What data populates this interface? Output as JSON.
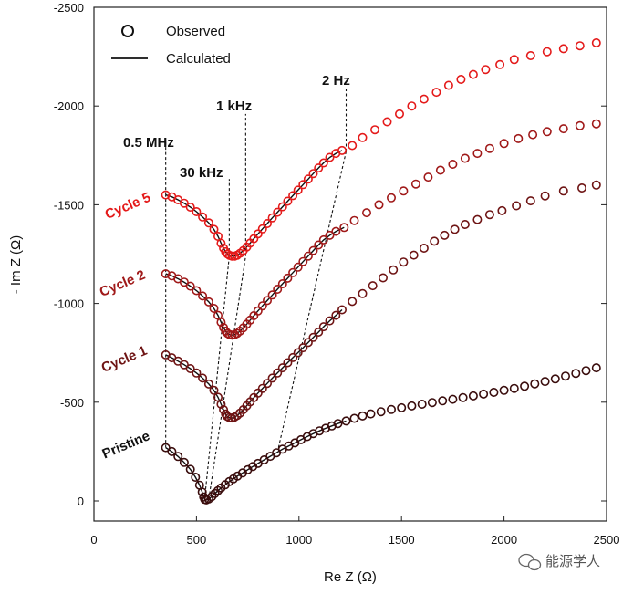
{
  "chart_data": {
    "type": "scatter",
    "xlabel": "Re Z (Ω)",
    "ylabel": "- Im Z (Ω)",
    "xlim": [
      0,
      2500
    ],
    "ylim": [
      0,
      -2500
    ],
    "x_ticks": [
      "0",
      "500",
      "1000",
      "1500",
      "2000",
      "2500"
    ],
    "y_ticks": [
      "0",
      "-500",
      "-1000",
      "-1500",
      "-2000",
      "-2500"
    ],
    "legend": {
      "placement": "top-left",
      "observed_label": "Observed",
      "calculated_label": "Calculated"
    },
    "frequency_annotations": [
      {
        "label": "0.5 MHz",
        "x": 350
      },
      {
        "label": "30 kHz",
        "x": 660
      },
      {
        "label": "1 kHz",
        "x": 740
      },
      {
        "label": "2 Hz",
        "x": 1230
      }
    ],
    "series": [
      {
        "name": "Pristine",
        "color": "#3a0d0d",
        "points": [
          [
            350,
            -270
          ],
          [
            380,
            -250
          ],
          [
            410,
            -225
          ],
          [
            440,
            -195
          ],
          [
            470,
            -160
          ],
          [
            495,
            -120
          ],
          [
            515,
            -80
          ],
          [
            528,
            -45
          ],
          [
            535,
            -20
          ],
          [
            540,
            -8
          ],
          [
            548,
            -5
          ],
          [
            560,
            -10
          ],
          [
            575,
            -22
          ],
          [
            590,
            -38
          ],
          [
            605,
            -52
          ],
          [
            620,
            -66
          ],
          [
            640,
            -82
          ],
          [
            660,
            -98
          ],
          [
            680,
            -112
          ],
          [
            700,
            -126
          ],
          [
            725,
            -142
          ],
          [
            750,
            -158
          ],
          [
            775,
            -174
          ],
          [
            800,
            -190
          ],
          [
            830,
            -208
          ],
          [
            860,
            -226
          ],
          [
            890,
            -244
          ],
          [
            920,
            -262
          ],
          [
            950,
            -278
          ],
          [
            980,
            -294
          ],
          [
            1010,
            -310
          ],
          [
            1040,
            -326
          ],
          [
            1070,
            -341
          ],
          [
            1100,
            -355
          ],
          [
            1130,
            -368
          ],
          [
            1160,
            -380
          ],
          [
            1190,
            -392
          ],
          [
            1230,
            -405
          ],
          [
            1270,
            -418
          ],
          [
            1310,
            -430
          ],
          [
            1350,
            -441
          ],
          [
            1400,
            -452
          ],
          [
            1450,
            -463
          ],
          [
            1500,
            -472
          ],
          [
            1550,
            -481
          ],
          [
            1600,
            -490
          ],
          [
            1650,
            -498
          ],
          [
            1700,
            -507
          ],
          [
            1750,
            -515
          ],
          [
            1800,
            -523
          ],
          [
            1850,
            -532
          ],
          [
            1900,
            -541
          ],
          [
            1950,
            -550
          ],
          [
            2000,
            -560
          ],
          [
            2050,
            -570
          ],
          [
            2100,
            -581
          ],
          [
            2150,
            -593
          ],
          [
            2200,
            -605
          ],
          [
            2250,
            -618
          ],
          [
            2300,
            -632
          ],
          [
            2350,
            -646
          ],
          [
            2400,
            -660
          ],
          [
            2450,
            -674
          ]
        ],
        "fit_x_max": 1230
      },
      {
        "name": "Cycle 1",
        "color": "#6e1414",
        "label": "Cycle 1",
        "points": [
          [
            350,
            -740
          ],
          [
            380,
            -725
          ],
          [
            410,
            -708
          ],
          [
            440,
            -690
          ],
          [
            470,
            -670
          ],
          [
            500,
            -648
          ],
          [
            530,
            -622
          ],
          [
            560,
            -592
          ],
          [
            585,
            -560
          ],
          [
            605,
            -525
          ],
          [
            620,
            -490
          ],
          [
            632,
            -462
          ],
          [
            642,
            -440
          ],
          [
            650,
            -428
          ],
          [
            660,
            -422
          ],
          [
            672,
            -420
          ],
          [
            685,
            -424
          ],
          [
            698,
            -432
          ],
          [
            712,
            -445
          ],
          [
            728,
            -462
          ],
          [
            745,
            -482
          ],
          [
            762,
            -502
          ],
          [
            780,
            -523
          ],
          [
            800,
            -546
          ],
          [
            822,
            -570
          ],
          [
            845,
            -595
          ],
          [
            870,
            -622
          ],
          [
            895,
            -648
          ],
          [
            920,
            -674
          ],
          [
            945,
            -700
          ],
          [
            970,
            -726
          ],
          [
            995,
            -751
          ],
          [
            1020,
            -776
          ],
          [
            1045,
            -802
          ],
          [
            1070,
            -828
          ],
          [
            1095,
            -855
          ],
          [
            1120,
            -882
          ],
          [
            1150,
            -912
          ],
          [
            1180,
            -940
          ],
          [
            1210,
            -968
          ],
          [
            1260,
            -1010
          ],
          [
            1310,
            -1050
          ],
          [
            1360,
            -1090
          ],
          [
            1410,
            -1130
          ],
          [
            1460,
            -1170
          ],
          [
            1510,
            -1210
          ],
          [
            1560,
            -1245
          ],
          [
            1610,
            -1280
          ],
          [
            1660,
            -1315
          ],
          [
            1710,
            -1345
          ],
          [
            1760,
            -1375
          ],
          [
            1810,
            -1400
          ],
          [
            1870,
            -1425
          ],
          [
            1930,
            -1450
          ],
          [
            1990,
            -1470
          ],
          [
            2060,
            -1495
          ],
          [
            2130,
            -1520
          ],
          [
            2200,
            -1545
          ],
          [
            2290,
            -1570
          ],
          [
            2380,
            -1585
          ],
          [
            2450,
            -1600
          ]
        ],
        "fit_x_max": 1230
      },
      {
        "name": "Cycle 2",
        "color": "#a01919",
        "label": "Cycle 2",
        "points": [
          [
            350,
            -1150
          ],
          [
            380,
            -1140
          ],
          [
            410,
            -1125
          ],
          [
            440,
            -1108
          ],
          [
            470,
            -1088
          ],
          [
            500,
            -1065
          ],
          [
            530,
            -1038
          ],
          [
            560,
            -1008
          ],
          [
            585,
            -975
          ],
          [
            605,
            -940
          ],
          [
            620,
            -905
          ],
          [
            632,
            -878
          ],
          [
            642,
            -860
          ],
          [
            652,
            -848
          ],
          [
            662,
            -842
          ],
          [
            674,
            -840
          ],
          [
            686,
            -842
          ],
          [
            698,
            -848
          ],
          [
            712,
            -860
          ],
          [
            728,
            -876
          ],
          [
            745,
            -895
          ],
          [
            762,
            -916
          ],
          [
            780,
            -938
          ],
          [
            800,
            -962
          ],
          [
            822,
            -988
          ],
          [
            845,
            -1015
          ],
          [
            870,
            -1043
          ],
          [
            895,
            -1072
          ],
          [
            920,
            -1100
          ],
          [
            945,
            -1128
          ],
          [
            970,
            -1156
          ],
          [
            995,
            -1184
          ],
          [
            1020,
            -1212
          ],
          [
            1045,
            -1240
          ],
          [
            1070,
            -1268
          ],
          [
            1095,
            -1296
          ],
          [
            1120,
            -1322
          ],
          [
            1150,
            -1345
          ],
          [
            1180,
            -1365
          ],
          [
            1220,
            -1385
          ],
          [
            1270,
            -1420
          ],
          [
            1330,
            -1460
          ],
          [
            1390,
            -1500
          ],
          [
            1450,
            -1535
          ],
          [
            1510,
            -1570
          ],
          [
            1570,
            -1605
          ],
          [
            1630,
            -1640
          ],
          [
            1690,
            -1675
          ],
          [
            1750,
            -1705
          ],
          [
            1810,
            -1735
          ],
          [
            1870,
            -1760
          ],
          [
            1930,
            -1785
          ],
          [
            2000,
            -1810
          ],
          [
            2070,
            -1835
          ],
          [
            2140,
            -1855
          ],
          [
            2210,
            -1870
          ],
          [
            2290,
            -1885
          ],
          [
            2370,
            -1900
          ],
          [
            2450,
            -1910
          ]
        ],
        "fit_x_max": 1230
      },
      {
        "name": "Cycle 5",
        "color": "#e41a1a",
        "label": "Cycle 5",
        "points": [
          [
            350,
            -1550
          ],
          [
            380,
            -1540
          ],
          [
            410,
            -1525
          ],
          [
            440,
            -1508
          ],
          [
            470,
            -1488
          ],
          [
            500,
            -1465
          ],
          [
            530,
            -1438
          ],
          [
            560,
            -1408
          ],
          [
            585,
            -1375
          ],
          [
            605,
            -1340
          ],
          [
            620,
            -1305
          ],
          [
            632,
            -1280
          ],
          [
            642,
            -1262
          ],
          [
            652,
            -1250
          ],
          [
            662,
            -1243
          ],
          [
            674,
            -1240
          ],
          [
            686,
            -1240
          ],
          [
            698,
            -1244
          ],
          [
            712,
            -1254
          ],
          [
            728,
            -1268
          ],
          [
            745,
            -1286
          ],
          [
            762,
            -1306
          ],
          [
            780,
            -1328
          ],
          [
            800,
            -1352
          ],
          [
            822,
            -1378
          ],
          [
            845,
            -1405
          ],
          [
            870,
            -1434
          ],
          [
            895,
            -1462
          ],
          [
            920,
            -1490
          ],
          [
            945,
            -1518
          ],
          [
            970,
            -1546
          ],
          [
            995,
            -1574
          ],
          [
            1020,
            -1602
          ],
          [
            1045,
            -1630
          ],
          [
            1070,
            -1658
          ],
          [
            1095,
            -1686
          ],
          [
            1120,
            -1712
          ],
          [
            1150,
            -1740
          ],
          [
            1180,
            -1760
          ],
          [
            1210,
            -1775
          ],
          [
            1260,
            -1800
          ],
          [
            1310,
            -1840
          ],
          [
            1370,
            -1880
          ],
          [
            1430,
            -1920
          ],
          [
            1490,
            -1960
          ],
          [
            1550,
            -2000
          ],
          [
            1610,
            -2035
          ],
          [
            1670,
            -2070
          ],
          [
            1730,
            -2105
          ],
          [
            1790,
            -2135
          ],
          [
            1850,
            -2160
          ],
          [
            1910,
            -2185
          ],
          [
            1980,
            -2210
          ],
          [
            2050,
            -2235
          ],
          [
            2130,
            -2255
          ],
          [
            2210,
            -2275
          ],
          [
            2290,
            -2290
          ],
          [
            2370,
            -2305
          ],
          [
            2450,
            -2320
          ]
        ],
        "fit_x_max": 1230
      }
    ],
    "guide_lines": [
      {
        "from": [
          350,
          -270
        ],
        "to": [
          350,
          -1550
        ]
      },
      {
        "from": [
          540,
          -10
        ],
        "to": [
          660,
          -1240
        ]
      },
      {
        "from": [
          560,
          -10
        ],
        "to": [
          740,
          -1240
        ]
      },
      {
        "from": [
          900,
          -270
        ],
        "to": [
          1230,
          -1770
        ]
      }
    ]
  },
  "watermark": {
    "text": "能源学人"
  }
}
